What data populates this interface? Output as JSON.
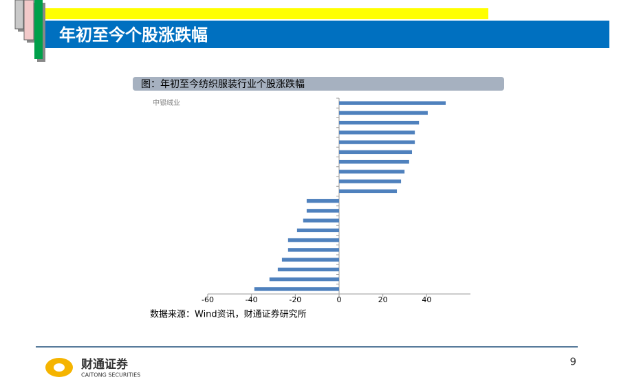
{
  "header": {
    "title": "年初至今个股涨跌幅"
  },
  "chart_data": {
    "type": "barh",
    "title": "图：年初至今纺织服装行业个股涨跌幅",
    "categories": [
      "中银绒业",
      null,
      null,
      null,
      null,
      null,
      null,
      null,
      null,
      null,
      null,
      null,
      null,
      null,
      null,
      null,
      null,
      null,
      null,
      null
    ],
    "values": [
      48.7,
      40.5,
      36.5,
      34.6,
      34.6,
      33.3,
      32.0,
      29.9,
      28.3,
      26.4,
      -14.8,
      -14.8,
      -16.4,
      -19.2,
      -23.3,
      -23.3,
      -26.1,
      -28.0,
      -31.8,
      -38.7
    ],
    "color": "#4f81bd",
    "xlim": [
      -60,
      60
    ],
    "xticks": [
      -60,
      -40,
      -20,
      0,
      20,
      40
    ],
    "grid": false
  },
  "source": "数据来源：Wind资讯，财通证券研究所",
  "page_number": "9",
  "logo": {
    "name": "财通证券",
    "english": "CAITONG SECURITIES"
  }
}
